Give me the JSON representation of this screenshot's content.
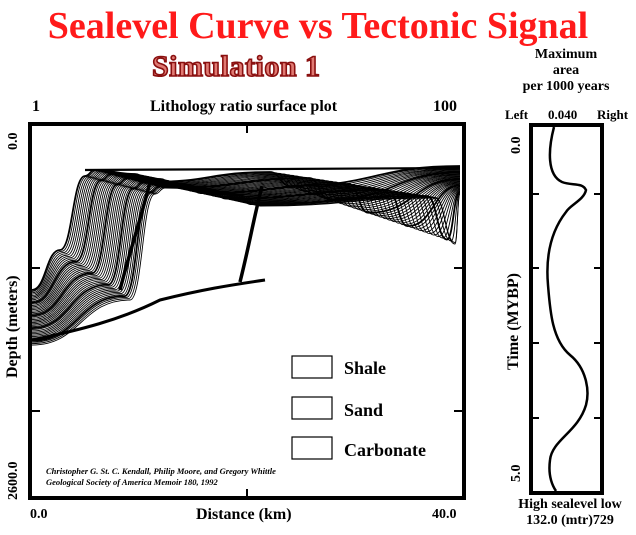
{
  "header": {
    "title": "Sealevel Curve vs Tectonic Signal",
    "subtitle": "Simulation 1"
  },
  "plot": {
    "top_left_label": "1",
    "top_caption": "Lithology ratio surface plot",
    "top_right_label": "100",
    "y_axis_label": "Depth (meters)",
    "y_tick_top": "0.0",
    "y_tick_bottom": "2600.0",
    "x_axis_label": "Distance (km)",
    "x_tick_left": "0.0",
    "x_tick_right": "40.0",
    "legend": [
      "Shale",
      "Sand",
      "Carbonate"
    ],
    "credit_line1": "Christopher G. St. C. Kendall, Philip Moore, and Gregory Whittle",
    "credit_line2": "Geological Society of America Memoir 180, 1992"
  },
  "side_panel": {
    "title_line1": "Maximum",
    "title_line2": "area",
    "title_line3": "per 1000 years",
    "left_label": "Left",
    "center_value": "0.040",
    "right_label": "Right",
    "y_tick_top": "0.0",
    "y_tick_bottom": "5.0",
    "y_axis_label": "Time (MYBP)",
    "bottom_line1": "High sealevel low",
    "bottom_line2": "132.0 (mtr)729"
  }
}
